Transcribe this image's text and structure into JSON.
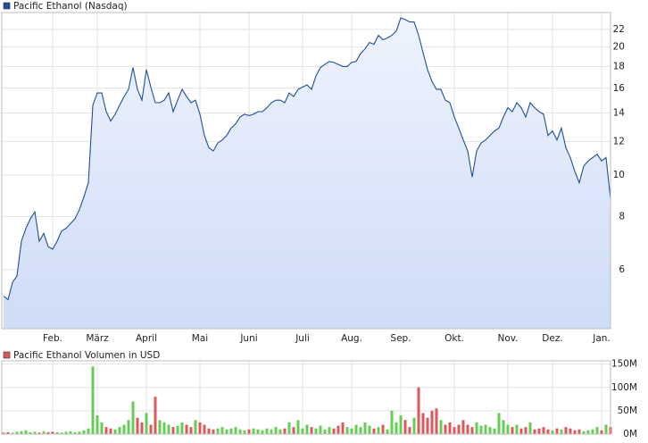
{
  "chart_data": [
    {
      "type": "line",
      "log_scale": true,
      "grid": true,
      "categories": [
        null,
        null,
        null,
        null,
        null,
        null,
        null,
        null,
        null,
        null,
        null,
        "Feb.",
        null,
        null,
        null,
        null,
        null,
        null,
        null,
        null,
        null,
        "März",
        null,
        null,
        null,
        null,
        null,
        null,
        null,
        null,
        null,
        null,
        "April",
        null,
        null,
        null,
        null,
        null,
        null,
        null,
        null,
        null,
        null,
        null,
        "Mai",
        null,
        null,
        null,
        null,
        null,
        null,
        null,
        null,
        null,
        null,
        "Juni",
        null,
        null,
        null,
        null,
        null,
        null,
        null,
        null,
        null,
        null,
        null,
        "Juli",
        null,
        null,
        null,
        null,
        null,
        null,
        null,
        null,
        null,
        null,
        "Aug.",
        null,
        null,
        null,
        null,
        null,
        null,
        null,
        null,
        null,
        null,
        "Sep.",
        null,
        null,
        null,
        null,
        null,
        null,
        null,
        null,
        null,
        null,
        null,
        "Okt.",
        null,
        null,
        null,
        null,
        null,
        null,
        null,
        null,
        null,
        null,
        null,
        "Nov.",
        null,
        null,
        null,
        null,
        null,
        null,
        null,
        null,
        null,
        "Dez.",
        null,
        null,
        null,
        null,
        null,
        null,
        null,
        null,
        null,
        null,
        "Jan.",
        null,
        null
      ],
      "series": [
        {
          "name": "Pacific Ethanol (Nasdaq)",
          "color": "#1f4e9a",
          "values": [
            5.2,
            5.1,
            5.6,
            5.8,
            7.0,
            7.5,
            7.9,
            8.2,
            7.0,
            7.3,
            6.8,
            6.7,
            7.0,
            7.4,
            7.5,
            7.7,
            7.9,
            8.3,
            8.9,
            9.6,
            14.6,
            15.6,
            15.6,
            14.1,
            13.4,
            13.9,
            14.6,
            15.3,
            15.9,
            17.9,
            15.9,
            15.0,
            17.7,
            16.1,
            14.8,
            14.8,
            15.0,
            15.6,
            14.1,
            15.0,
            15.9,
            15.3,
            14.8,
            15.0,
            13.9,
            12.4,
            11.6,
            11.4,
            11.9,
            12.1,
            12.4,
            12.9,
            13.2,
            13.7,
            13.9,
            13.8,
            13.9,
            14.1,
            14.1,
            14.4,
            14.8,
            15.0,
            15.0,
            14.8,
            15.6,
            15.3,
            15.9,
            16.1,
            16.3,
            15.9,
            17.1,
            17.9,
            18.2,
            18.5,
            18.4,
            18.2,
            18.0,
            18.0,
            18.4,
            18.5,
            19.3,
            19.8,
            20.5,
            20.3,
            21.3,
            20.8,
            21.0,
            21.3,
            21.8,
            23.4,
            23.2,
            22.9,
            22.9,
            21.3,
            19.4,
            17.7,
            16.6,
            15.9,
            15.9,
            15.0,
            14.8,
            13.7,
            12.9,
            12.1,
            11.4,
            9.9,
            11.4,
            11.9,
            12.1,
            12.4,
            12.7,
            12.9,
            13.7,
            14.4,
            14.1,
            14.8,
            14.4,
            13.7,
            14.8,
            14.4,
            14.1,
            13.9,
            12.4,
            12.7,
            12.1,
            12.9,
            11.6,
            11.0,
            10.2,
            9.6,
            10.5,
            10.8,
            11.0,
            11.2,
            10.8,
            11.0,
            8.8
          ]
        }
      ],
      "ylim": [
        4.36,
        24.1
      ],
      "yticks": [
        6,
        8,
        10,
        12,
        14,
        16,
        18,
        20,
        22
      ]
    },
    {
      "type": "bar",
      "grid": true,
      "up_color": "#66cc55",
      "series": [
        {
          "name": "Pacific Ethanol Volumen in USD",
          "color": "#d9595e",
          "values": [
            3000000,
            4000000,
            3000000,
            5000000,
            6000000,
            8000000,
            4000000,
            5000000,
            3000000,
            6000000,
            4000000,
            5000000,
            4000000,
            3000000,
            5000000,
            6000000,
            4000000,
            5000000,
            8000000,
            12000000,
            145000000,
            40000000,
            25000000,
            15000000,
            12000000,
            10000000,
            15000000,
            20000000,
            30000000,
            70000000,
            35000000,
            25000000,
            45000000,
            20000000,
            80000000,
            30000000,
            25000000,
            20000000,
            15000000,
            18000000,
            25000000,
            20000000,
            15000000,
            30000000,
            25000000,
            20000000,
            12000000,
            10000000,
            12000000,
            15000000,
            10000000,
            12000000,
            15000000,
            10000000,
            8000000,
            10000000,
            12000000,
            10000000,
            8000000,
            12000000,
            10000000,
            15000000,
            10000000,
            12000000,
            25000000,
            15000000,
            30000000,
            12000000,
            20000000,
            15000000,
            12000000,
            18000000,
            10000000,
            15000000,
            12000000,
            18000000,
            25000000,
            15000000,
            12000000,
            20000000,
            15000000,
            25000000,
            18000000,
            12000000,
            15000000,
            20000000,
            10000000,
            50000000,
            25000000,
            40000000,
            30000000,
            15000000,
            35000000,
            100000000,
            45000000,
            35000000,
            50000000,
            55000000,
            30000000,
            20000000,
            25000000,
            15000000,
            20000000,
            30000000,
            20000000,
            15000000,
            25000000,
            18000000,
            20000000,
            15000000,
            12000000,
            45000000,
            30000000,
            20000000,
            15000000,
            20000000,
            12000000,
            15000000,
            25000000,
            10000000,
            12000000,
            15000000,
            10000000,
            8000000,
            12000000,
            10000000,
            15000000,
            12000000,
            8000000,
            10000000,
            6000000,
            8000000,
            10000000,
            15000000,
            8000000,
            20000000,
            15000000
          ]
        }
      ],
      "ylim": [
        0,
        157000000
      ],
      "yticks": [
        {
          "value": 0,
          "label": "0M"
        },
        {
          "value": 50000000,
          "label": "50M"
        },
        {
          "value": 100000000,
          "label": "100M"
        },
        {
          "value": 150000000,
          "label": "150M"
        }
      ]
    }
  ]
}
